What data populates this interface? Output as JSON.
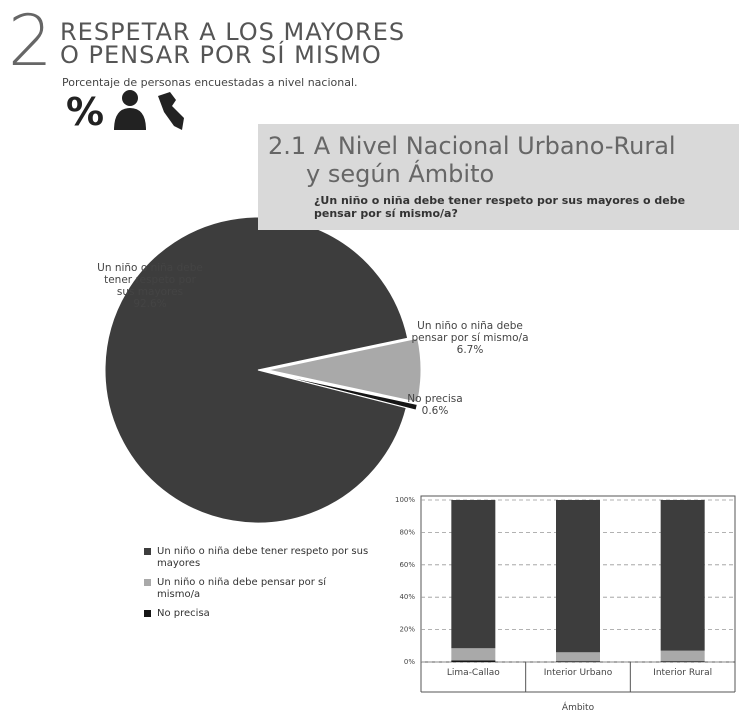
{
  "header": {
    "number": "2",
    "title_line1": "RESPETAR A LOS MAYORES",
    "title_line2": "O PENSAR POR SÍ MISMO",
    "subtitle": "Porcentaje de personas encuestadas a nivel nacional.",
    "icon_text": "%"
  },
  "section": {
    "title_line1": "2.1 A Nivel Nacional Urbano-Rural",
    "title_line2": "y según Ámbito",
    "question": "¿Un niño o niña debe tener respeto por sus mayores o debe pensar por sí mismo/a?"
  },
  "chart_data": [
    {
      "type": "pie",
      "categories": [
        "Un niño o niña debe tener respeto por sus mayores",
        "Un niño o niña debe pensar por sí mismo/a",
        "No precisa"
      ],
      "values": [
        92.6,
        6.7,
        0.6
      ],
      "value_labels": [
        "92.6%",
        "6.7%",
        "0.6%"
      ],
      "colors": [
        "#3d3d3d",
        "#a9a9a9",
        "#151515"
      ]
    },
    {
      "type": "stacked_bar",
      "categories": [
        "Lima-Callao",
        "Interior Urbano",
        "Interior Rural"
      ],
      "x_label": "Ámbito",
      "series": [
        {
          "name": "No precisa",
          "color": "#151515",
          "values": [
            1,
            0.5,
            0.5
          ]
        },
        {
          "name": "Un niño o niña debe pensar por sí mismo/a",
          "color": "#a9a9a9",
          "values": [
            7.5,
            5.5,
            6.5
          ]
        },
        {
          "name": "Un niño o niña debe tener respeto por sus mayores",
          "color": "#3d3d3d",
          "values": [
            91.5,
            94,
            93
          ]
        }
      ],
      "ylim": [
        0,
        100
      ],
      "yticks": [
        {
          "value": 0,
          "label": "0%"
        },
        {
          "value": 20,
          "label": "20%"
        },
        {
          "value": 40,
          "label": "40%"
        },
        {
          "value": 60,
          "label": "60%"
        },
        {
          "value": 80,
          "label": "80%"
        },
        {
          "value": 100,
          "label": "100%"
        }
      ],
      "grid": true
    }
  ]
}
